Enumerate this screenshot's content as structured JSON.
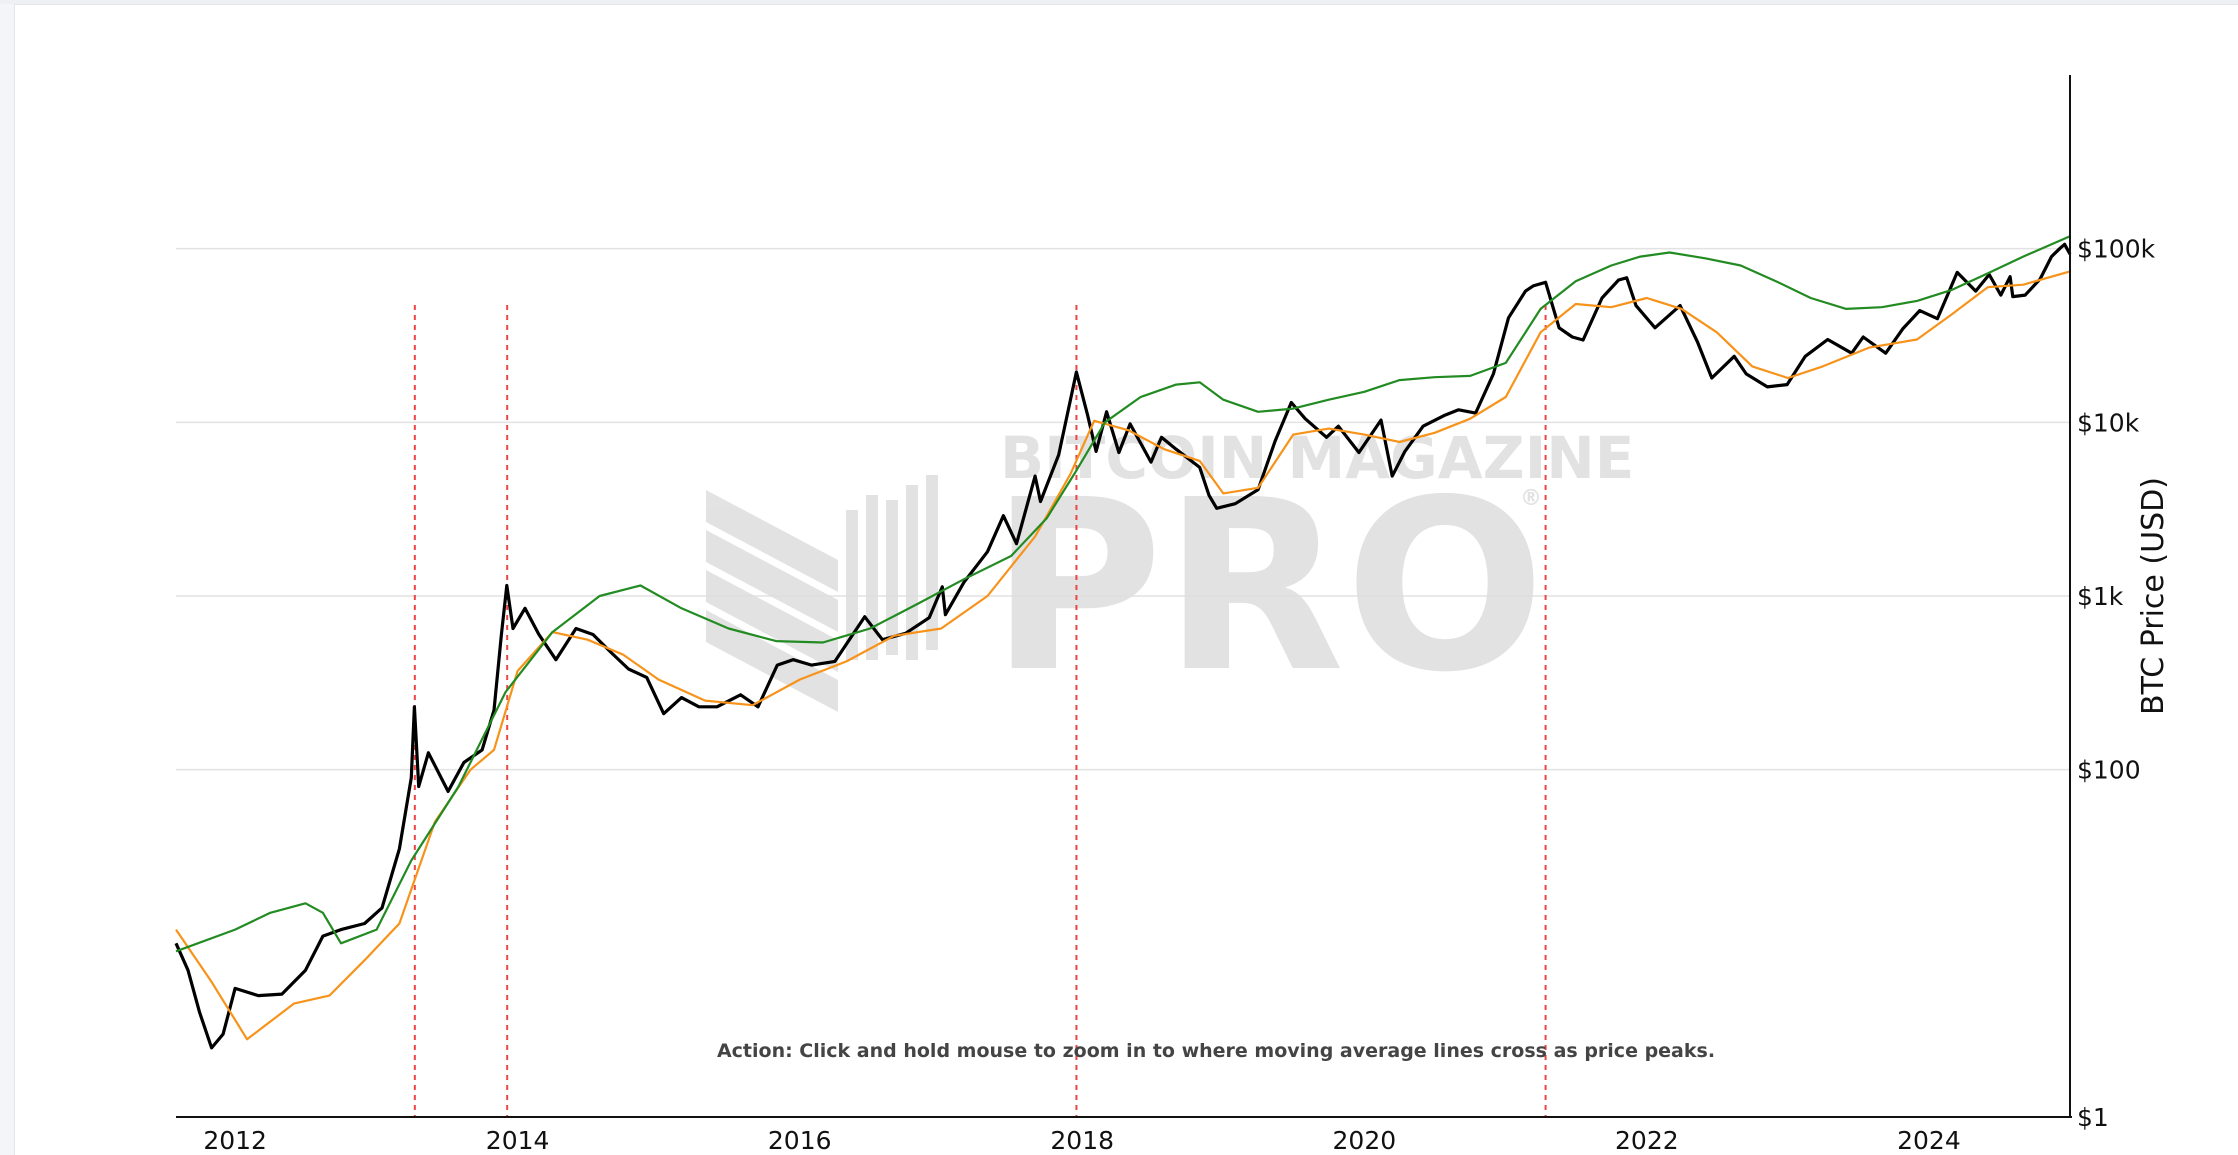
{
  "chart_data": {
    "type": "line",
    "title": "",
    "xlabel": "",
    "ylabel": "BTC Price (USD)",
    "y_scale": "log",
    "ylim": [
      1,
      1000000
    ],
    "xlim": [
      "2011-08-01",
      "2024-12-31"
    ],
    "grid": true,
    "y_ticks": [
      {
        "value": 1,
        "label": "$1"
      },
      {
        "value": 100,
        "label": "$100"
      },
      {
        "value": 1000,
        "label": "$1k"
      },
      {
        "value": 10000,
        "label": "$10k"
      },
      {
        "value": 100000,
        "label": "$100k"
      }
    ],
    "x_ticks": [
      "2012",
      "2014",
      "2016",
      "2018",
      "2020",
      "2022",
      "2024"
    ],
    "annotation": "Action: Click and hold mouse to zoom in to where moving average lines cross as price peaks.",
    "watermark": {
      "top": "BITCOIN MAGAZINE",
      "main": "PRO",
      "mark": "®"
    },
    "cross_markers": [
      "2013-04-10",
      "2013-12-05",
      "2017-12-17",
      "2021-04-14"
    ],
    "series": [
      {
        "color": "#000000",
        "x": [
          "2011-08-01",
          "2011-09-01",
          "2011-10-01",
          "2011-11-01",
          "2011-12-01",
          "2012-01-01",
          "2012-03-01",
          "2012-05-01",
          "2012-07-01",
          "2012-08-15",
          "2012-10-01",
          "2012-12-01",
          "2013-01-15",
          "2013-03-01",
          "2013-04-01",
          "2013-04-09",
          "2013-04-20",
          "2013-05-15",
          "2013-07-05",
          "2013-08-15",
          "2013-10-01",
          "2013-11-01",
          "2013-11-20",
          "2013-12-04",
          "2013-12-20",
          "2014-01-20",
          "2014-02-25",
          "2014-04-10",
          "2014-06-01",
          "2014-07-15",
          "2014-09-01",
          "2014-10-15",
          "2014-12-01",
          "2015-01-14",
          "2015-03-01",
          "2015-04-15",
          "2015-06-01",
          "2015-08-01",
          "2015-09-15",
          "2015-11-04",
          "2015-12-15",
          "2016-02-01",
          "2016-04-01",
          "2016-06-17",
          "2016-08-02",
          "2016-10-01",
          "2016-12-01",
          "2017-01-04",
          "2017-01-12",
          "2017-03-01",
          "2017-05-01",
          "2017-06-11",
          "2017-07-15",
          "2017-09-01",
          "2017-09-15",
          "2017-11-01",
          "2017-12-17",
          "2018-01-15",
          "2018-02-06",
          "2018-03-05",
          "2018-04-06",
          "2018-05-05",
          "2018-06-28",
          "2018-07-25",
          "2018-09-01",
          "2018-11-01",
          "2018-11-25",
          "2018-12-15",
          "2019-02-01",
          "2019-04-01",
          "2019-05-15",
          "2019-06-26",
          "2019-08-01",
          "2019-09-25",
          "2019-10-26",
          "2019-12-18",
          "2020-02-13",
          "2020-03-13",
          "2020-04-15",
          "2020-06-01",
          "2020-07-28",
          "2020-09-01",
          "2020-10-15",
          "2020-11-30",
          "2021-01-08",
          "2021-02-21",
          "2021-03-13",
          "2021-04-14",
          "2021-05-19",
          "2021-06-22",
          "2021-07-20",
          "2021-09-07",
          "2021-10-20",
          "2021-11-10",
          "2021-12-04",
          "2022-01-22",
          "2022-03-28",
          "2022-05-12",
          "2022-06-18",
          "2022-08-15",
          "2022-09-15",
          "2022-11-09",
          "2022-12-30",
          "2023-02-15",
          "2023-04-14",
          "2023-06-15",
          "2023-07-15",
          "2023-09-11",
          "2023-10-25",
          "2023-12-08",
          "2024-01-23",
          "2024-03-14",
          "2024-05-01",
          "2024-06-05",
          "2024-07-05",
          "2024-07-29",
          "2024-08-05",
          "2024-09-06",
          "2024-10-15",
          "2024-11-13",
          "2024-12-05",
          "2024-12-17",
          "2024-12-31"
        ],
        "y": [
          10,
          7,
          4,
          2.5,
          3,
          5.5,
          5,
          5.1,
          7,
          11,
          12,
          13,
          16,
          35,
          90,
          230,
          80,
          125,
          75,
          110,
          130,
          220,
          600,
          1150,
          650,
          850,
          600,
          430,
          650,
          600,
          470,
          380,
          340,
          210,
          260,
          230,
          230,
          270,
          230,
          400,
          430,
          400,
          420,
          760,
          560,
          610,
          750,
          1130,
          780,
          1200,
          1800,
          2900,
          2000,
          4900,
          3500,
          6500,
          19500,
          11000,
          6800,
          11500,
          6700,
          9800,
          5900,
          8200,
          7000,
          5500,
          3800,
          3200,
          3400,
          4100,
          7800,
          13000,
          10500,
          8200,
          9500,
          6700,
          10300,
          4900,
          6800,
          9500,
          11000,
          11800,
          11300,
          19000,
          40000,
          57000,
          61000,
          64000,
          35000,
          31000,
          29800,
          52000,
          66000,
          68000,
          47000,
          35000,
          47000,
          29000,
          18000,
          24000,
          19000,
          16000,
          16500,
          24000,
          30000,
          25000,
          31000,
          25000,
          34500,
          44000,
          39500,
          73000,
          57000,
          71000,
          54000,
          69000,
          53000,
          54000,
          67000,
          90000,
          100500,
          106000,
          93000
        ]
      },
      {
        "color": "#f7931a",
        "x": [
          "2011-08-01",
          "2011-11-01",
          "2012-02-01",
          "2012-06-01",
          "2012-09-01",
          "2012-12-01",
          "2013-03-01",
          "2013-06-01",
          "2013-09-01",
          "2013-11-01",
          "2014-01-01",
          "2014-04-01",
          "2014-07-01",
          "2014-10-01",
          "2015-01-01",
          "2015-05-01",
          "2015-09-01",
          "2016-01-01",
          "2016-05-01",
          "2016-09-01",
          "2017-01-01",
          "2017-05-01",
          "2017-09-01",
          "2017-12-01",
          "2018-02-01",
          "2018-05-01",
          "2018-08-01",
          "2018-11-01",
          "2019-01-01",
          "2019-04-01",
          "2019-07-01",
          "2019-10-01",
          "2020-01-01",
          "2020-04-01",
          "2020-07-01",
          "2020-10-01",
          "2021-01-01",
          "2021-04-01",
          "2021-07-01",
          "2021-10-01",
          "2022-01-01",
          "2022-04-01",
          "2022-07-01",
          "2022-10-01",
          "2023-01-01",
          "2023-04-01",
          "2023-08-01",
          "2023-12-01",
          "2024-03-01",
          "2024-06-01",
          "2024-09-01",
          "2024-12-31"
        ],
        "y": [
          12,
          6,
          2.8,
          4.5,
          5,
          8,
          13,
          50,
          100,
          130,
          370,
          620,
          560,
          460,
          330,
          250,
          235,
          330,
          420,
          590,
          650,
          1000,
          2200,
          5000,
          10200,
          9000,
          7000,
          6000,
          3900,
          4200,
          8500,
          9200,
          8500,
          7700,
          8700,
          10500,
          14000,
          33000,
          48000,
          46000,
          52000,
          45000,
          33000,
          21000,
          18000,
          21000,
          27000,
          30000,
          42000,
          60000,
          62000,
          74000
        ]
      },
      {
        "color": "#228b22",
        "x": [
          "2011-08-01",
          "2012-01-01",
          "2012-04-01",
          "2012-07-01",
          "2012-08-15",
          "2012-10-01",
          "2013-01-01",
          "2013-04-01",
          "2013-08-01",
          "2013-12-01",
          "2014-04-01",
          "2014-08-01",
          "2014-11-15",
          "2015-03-01",
          "2015-07-01",
          "2015-11-01",
          "2016-03-01",
          "2016-07-01",
          "2016-11-01",
          "2017-03-01",
          "2017-07-01",
          "2017-10-01",
          "2017-12-15",
          "2018-03-01",
          "2018-06-01",
          "2018-09-01",
          "2018-11-01",
          "2019-01-01",
          "2019-04-01",
          "2019-07-01",
          "2019-10-01",
          "2020-01-01",
          "2020-04-01",
          "2020-07-01",
          "2020-10-01",
          "2021-01-01",
          "2021-04-01",
          "2021-07-01",
          "2021-10-01",
          "2021-12-15",
          "2022-03-01",
          "2022-06-01",
          "2022-09-01",
          "2022-12-01",
          "2023-03-01",
          "2023-06-01",
          "2023-09-01",
          "2023-12-01",
          "2024-03-01",
          "2024-06-01",
          "2024-09-01",
          "2024-12-31"
        ],
        "y": [
          9,
          12,
          15,
          17,
          15,
          10,
          12,
          30,
          80,
          280,
          620,
          1000,
          1150,
          850,
          650,
          550,
          540,
          650,
          900,
          1250,
          1700,
          2800,
          5200,
          10000,
          14000,
          16500,
          17000,
          13500,
          11500,
          12000,
          13500,
          15000,
          17500,
          18200,
          18500,
          22000,
          45000,
          65000,
          80000,
          90000,
          95000,
          88000,
          80000,
          65000,
          52000,
          45000,
          46000,
          50000,
          58000,
          72000,
          90000,
          118000
        ]
      }
    ]
  }
}
